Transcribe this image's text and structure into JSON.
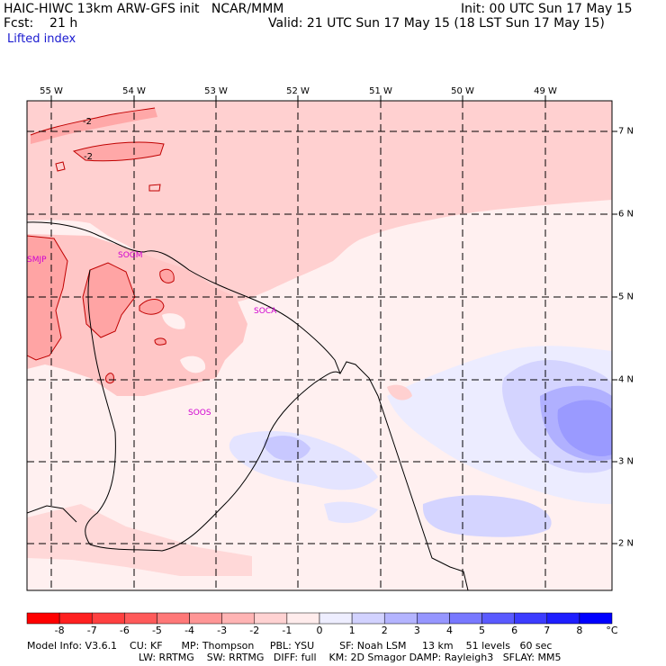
{
  "header": {
    "title_left": "HAIC-HIWC 13km ARW-GFS init   NCAR/MMM",
    "init": "Init: 00 UTC Sun 17 May 15",
    "fcst": "Fcst:    21 h",
    "valid": "Valid: 21 UTC Sun 17 May 15 (18 LST Sun 17 May 15)",
    "field": "Lifted index"
  },
  "map": {
    "longitude_labels": [
      "55 W",
      "54 W",
      "53 W",
      "52 W",
      "51 W",
      "50 W",
      "49 W"
    ],
    "latitude_labels": [
      "7 N",
      "6 N",
      "5 N",
      "4 N",
      "3 N",
      "2 N"
    ],
    "contour_labels": [
      "-2",
      "-2"
    ],
    "stations": [
      "SMJP",
      "SOGM",
      "SOCA",
      "SOOS"
    ]
  },
  "colorbar": {
    "labels": [
      "-8",
      "-7",
      "-6",
      "-5",
      "-4",
      "-3",
      "-2",
      "-1",
      "0",
      "1",
      "2",
      "3",
      "4",
      "5",
      "6",
      "7",
      "8"
    ],
    "unit": "°C",
    "colors": [
      "#ff0000",
      "#ff2020",
      "#ff4040",
      "#ff5a5a",
      "#ff7878",
      "#ff9696",
      "#ffb4b4",
      "#ffd2d2",
      "#ffecec",
      "#eeeeff",
      "#d2d2ff",
      "#b4b4ff",
      "#9696ff",
      "#7878ff",
      "#5a5aff",
      "#3c3cff",
      "#1e1eff",
      "#0000ff"
    ]
  },
  "footer": {
    "line1": "Model Info: V3.6.1    CU: KF      MP: Thompson     PBL: YSU        SF: Noah LSM     13 km    51 levels   60 sec",
    "line2": "LW: RRTMG    SW: RRTMG   DIFF: full    KM: 2D Smagor DAMP: Rayleigh3   SFLAY: MM5"
  }
}
